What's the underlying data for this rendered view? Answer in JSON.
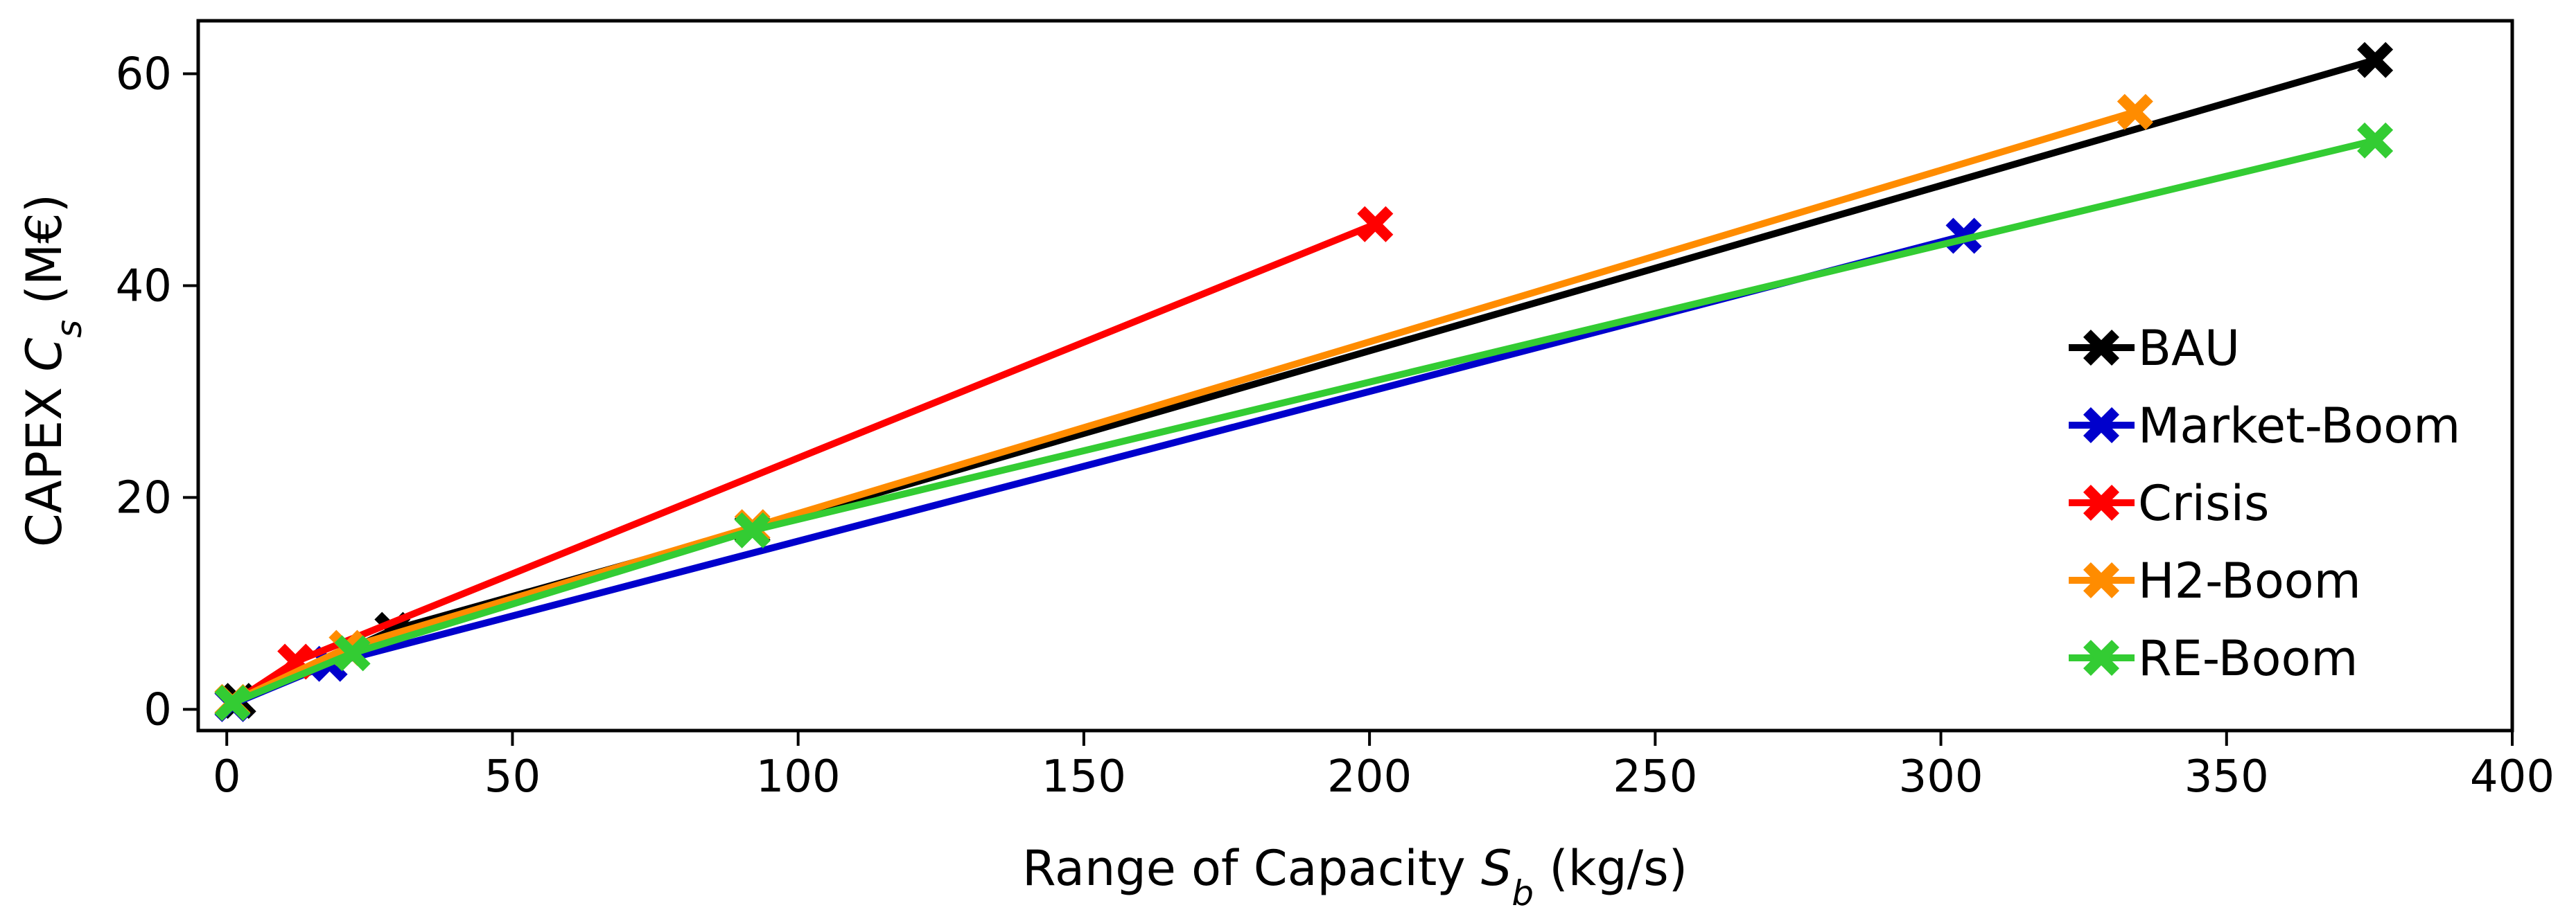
{
  "chart_data": {
    "type": "line",
    "xlabel": {
      "main": "Range of Capacity ",
      "var": "S",
      "sub": "b",
      "unit": " (kg/s)"
    },
    "ylabel": {
      "main": "CAPEX ",
      "var": "C",
      "sub": "s",
      "unit": " (M€)"
    },
    "xlim": [
      -5,
      400
    ],
    "ylim": [
      -2,
      65
    ],
    "xticks": [
      0,
      50,
      100,
      150,
      200,
      250,
      300,
      350,
      400
    ],
    "yticks": [
      0,
      20,
      40,
      60
    ],
    "grid": false,
    "legend_position": "right",
    "series": [
      {
        "name": "BAU",
        "color": "#000000",
        "points": [
          [
            2,
            0.8
          ],
          [
            29,
            7.5
          ],
          [
            92,
            17
          ],
          [
            376,
            61.3
          ]
        ]
      },
      {
        "name": "Market-Boom",
        "color": "#0000cc",
        "points": [
          [
            1,
            0.5
          ],
          [
            18,
            4.3
          ],
          [
            304,
            44.7
          ]
        ]
      },
      {
        "name": "Crisis",
        "color": "#ff0000",
        "points": [
          [
            1,
            0.6
          ],
          [
            12,
            4.5
          ],
          [
            201,
            45.8
          ]
        ]
      },
      {
        "name": "H2-Boom",
        "color": "#ff8c00",
        "points": [
          [
            1,
            0.7
          ],
          [
            21,
            5.8
          ],
          [
            92,
            17.2
          ],
          [
            334,
            56.4
          ]
        ]
      },
      {
        "name": "RE-Boom",
        "color": "#33cc33",
        "points": [
          [
            1,
            0.6
          ],
          [
            22,
            5.3
          ],
          [
            92,
            16.9
          ],
          [
            376,
            53.7
          ]
        ]
      }
    ]
  }
}
